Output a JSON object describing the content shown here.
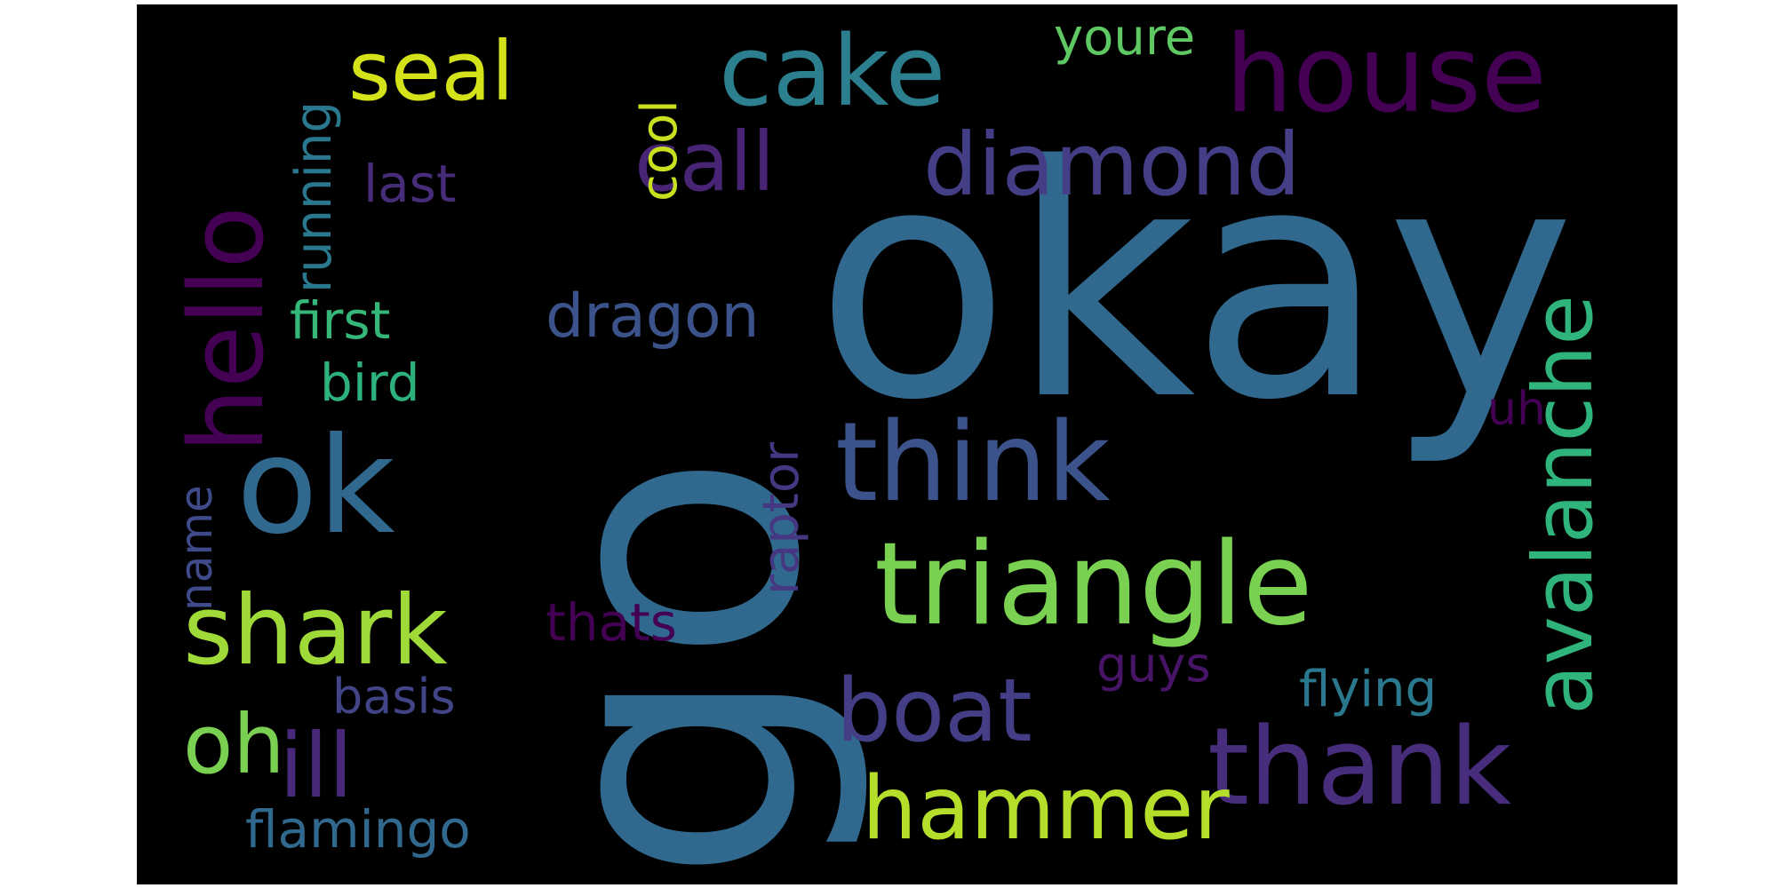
{
  "wordcloud": {
    "background_color": "#000000",
    "words": [
      {
        "text": "okay",
        "color": "#31688e",
        "orientation": "horizontal"
      },
      {
        "text": "go",
        "color": "#31688e",
        "orientation": "vertical"
      },
      {
        "text": "house",
        "color": "#440154",
        "orientation": "horizontal"
      },
      {
        "text": "cake",
        "color": "#2c7f8e",
        "orientation": "horizontal"
      },
      {
        "text": "seal",
        "color": "#d4e21a",
        "orientation": "horizontal"
      },
      {
        "text": "hello",
        "color": "#440154",
        "orientation": "vertical"
      },
      {
        "text": "call",
        "color": "#482475",
        "orientation": "horizontal"
      },
      {
        "text": "diamond",
        "color": "#433e85",
        "orientation": "horizontal"
      },
      {
        "text": "avalanche",
        "color": "#2fb47c",
        "orientation": "vertical"
      },
      {
        "text": "think",
        "color": "#3b528b",
        "orientation": "horizontal"
      },
      {
        "text": "triangle",
        "color": "#7ad151",
        "orientation": "horizontal"
      },
      {
        "text": "ok",
        "color": "#31688e",
        "orientation": "horizontal"
      },
      {
        "text": "shark",
        "color": "#a0da39",
        "orientation": "horizontal"
      },
      {
        "text": "boat",
        "color": "#433e85",
        "orientation": "horizontal"
      },
      {
        "text": "thank",
        "color": "#472d7b",
        "orientation": "horizontal"
      },
      {
        "text": "hammer",
        "color": "#b5de2b",
        "orientation": "horizontal"
      },
      {
        "text": "oh",
        "color": "#7ad151",
        "orientation": "horizontal"
      },
      {
        "text": "ill",
        "color": "#482878",
        "orientation": "horizontal"
      },
      {
        "text": "dragon",
        "color": "#3b528b",
        "orientation": "horizontal"
      },
      {
        "text": "first",
        "color": "#35b779",
        "orientation": "horizontal"
      },
      {
        "text": "bird",
        "color": "#2db27d",
        "orientation": "horizontal"
      },
      {
        "text": "running",
        "color": "#2a788e",
        "orientation": "vertical"
      },
      {
        "text": "last",
        "color": "#472c7a",
        "orientation": "horizontal"
      },
      {
        "text": "cool",
        "color": "#c8e020",
        "orientation": "vertical"
      },
      {
        "text": "youre",
        "color": "#5ec962",
        "orientation": "horizontal"
      },
      {
        "text": "uh",
        "color": "#440154",
        "orientation": "horizontal"
      },
      {
        "text": "raptor",
        "color": "#453781",
        "orientation": "vertical"
      },
      {
        "text": "name",
        "color": "#3e4a89",
        "orientation": "vertical"
      },
      {
        "text": "thats",
        "color": "#440154",
        "orientation": "horizontal"
      },
      {
        "text": "guys",
        "color": "#481467",
        "orientation": "horizontal"
      },
      {
        "text": "basis",
        "color": "#414487",
        "orientation": "horizontal"
      },
      {
        "text": "flying",
        "color": "#2a788e",
        "orientation": "horizontal"
      },
      {
        "text": "flamingo",
        "color": "#31688e",
        "orientation": "horizontal"
      }
    ]
  }
}
